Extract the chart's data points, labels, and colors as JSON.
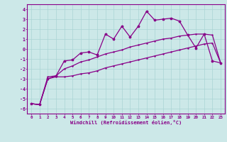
{
  "xlabel": "Windchill (Refroidissement éolien,°C)",
  "background_color": "#cce8e8",
  "grid_color": "#aad4d4",
  "line_color": "#880088",
  "spine_color": "#880088",
  "xlim": [
    -0.5,
    23.5
  ],
  "ylim": [
    -6.5,
    4.5
  ],
  "xticks": [
    0,
    1,
    2,
    3,
    4,
    5,
    6,
    7,
    8,
    9,
    10,
    11,
    12,
    13,
    14,
    15,
    16,
    17,
    18,
    19,
    20,
    21,
    22,
    23
  ],
  "yticks": [
    -6,
    -5,
    -4,
    -3,
    -2,
    -1,
    0,
    1,
    2,
    3,
    4
  ],
  "line1_x": [
    0,
    1,
    2,
    3,
    4,
    5,
    6,
    7,
    8,
    9,
    10,
    11,
    12,
    13,
    14,
    15,
    16,
    17,
    18,
    19,
    20,
    21,
    22,
    23
  ],
  "line1_y": [
    -5.5,
    -5.6,
    -3.0,
    -2.7,
    -1.2,
    -1.1,
    -0.4,
    -0.3,
    -0.6,
    1.5,
    1.0,
    2.3,
    1.2,
    2.3,
    3.8,
    2.9,
    3.0,
    3.1,
    2.8,
    1.4,
    0.1,
    1.5,
    -1.2,
    -1.4
  ],
  "line2_x": [
    0,
    1,
    2,
    3,
    4,
    5,
    6,
    7,
    8,
    9,
    10,
    11,
    12,
    13,
    14,
    15,
    16,
    17,
    18,
    19,
    20,
    21,
    22,
    23
  ],
  "line2_y": [
    -5.5,
    -5.6,
    -2.8,
    -2.7,
    -2.0,
    -1.7,
    -1.3,
    -1.1,
    -0.8,
    -0.5,
    -0.3,
    -0.1,
    0.2,
    0.4,
    0.6,
    0.8,
    1.0,
    1.1,
    1.3,
    1.4,
    1.5,
    1.5,
    1.4,
    -1.4
  ],
  "line3_x": [
    0,
    1,
    2,
    3,
    4,
    5,
    6,
    7,
    8,
    9,
    10,
    11,
    12,
    13,
    14,
    15,
    16,
    17,
    18,
    19,
    20,
    21,
    22,
    23
  ],
  "line3_y": [
    -5.5,
    -5.6,
    -3.0,
    -2.8,
    -2.8,
    -2.7,
    -2.5,
    -2.4,
    -2.2,
    -1.9,
    -1.7,
    -1.5,
    -1.3,
    -1.1,
    -0.9,
    -0.7,
    -0.5,
    -0.3,
    -0.1,
    0.1,
    0.3,
    0.5,
    0.6,
    -1.4
  ]
}
